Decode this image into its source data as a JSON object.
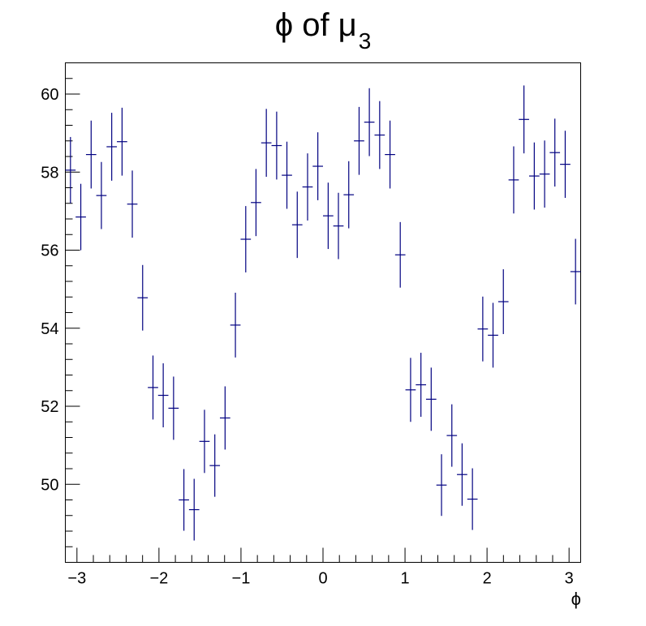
{
  "chart_data": {
    "type": "scatter",
    "title": "ϕ of μ",
    "title_subscript": "3",
    "xlabel": "ϕ",
    "ylabel": "",
    "xlim": [
      -3.1416,
      3.1416
    ],
    "ylim": [
      48.0,
      60.8
    ],
    "x_ticks": [
      -3,
      -2,
      -1,
      0,
      1,
      2,
      3
    ],
    "x_tick_labels": [
      "−3",
      "−2",
      "−1",
      "0",
      "1",
      "2",
      "3"
    ],
    "y_ticks": [
      50,
      52,
      54,
      56,
      58,
      60
    ],
    "y_tick_labels": [
      "50",
      "52",
      "54",
      "56",
      "58",
      "60"
    ],
    "grid": false,
    "legend": "none",
    "marker_color": "#000080",
    "bin_width": 0.1257,
    "series": [
      {
        "x": [
          -3.079,
          -2.953,
          -2.827,
          -2.702,
          -2.576,
          -2.45,
          -2.325,
          -2.199,
          -2.073,
          -1.948,
          -1.822,
          -1.696,
          -1.571,
          -1.445,
          -1.319,
          -1.194,
          -1.068,
          -0.942,
          -0.817,
          -0.691,
          -0.565,
          -0.44,
          -0.314,
          -0.188,
          -0.063,
          0.063,
          0.188,
          0.314,
          0.44,
          0.565,
          0.691,
          0.817,
          0.942,
          1.068,
          1.194,
          1.319,
          1.445,
          1.571,
          1.696,
          1.822,
          1.948,
          2.073,
          2.199,
          2.325,
          2.45,
          2.576,
          2.702,
          2.827,
          2.953,
          3.079
        ],
        "y": [
          58.05,
          56.85,
          58.45,
          57.4,
          58.65,
          58.78,
          57.18,
          54.78,
          52.48,
          52.28,
          51.95,
          49.6,
          49.35,
          51.1,
          50.48,
          51.7,
          54.08,
          56.28,
          57.22,
          58.75,
          58.68,
          57.92,
          56.65,
          57.62,
          58.15,
          56.88,
          56.62,
          57.42,
          58.8,
          59.28,
          58.95,
          58.45,
          55.88,
          52.42,
          52.55,
          52.18,
          49.98,
          51.25,
          50.25,
          49.62,
          53.98,
          53.82,
          54.68,
          57.8,
          59.35,
          57.9,
          57.95,
          58.5,
          58.2,
          55.45
        ],
        "y_err": [
          0.85,
          0.85,
          0.87,
          0.86,
          0.87,
          0.87,
          0.86,
          0.84,
          0.82,
          0.82,
          0.81,
          0.79,
          0.79,
          0.81,
          0.8,
          0.81,
          0.83,
          0.85,
          0.86,
          0.87,
          0.87,
          0.86,
          0.85,
          0.86,
          0.87,
          0.85,
          0.85,
          0.86,
          0.87,
          0.87,
          0.87,
          0.87,
          0.84,
          0.82,
          0.82,
          0.81,
          0.79,
          0.8,
          0.8,
          0.79,
          0.83,
          0.83,
          0.83,
          0.86,
          0.87,
          0.86,
          0.86,
          0.87,
          0.86,
          0.84
        ]
      }
    ]
  }
}
